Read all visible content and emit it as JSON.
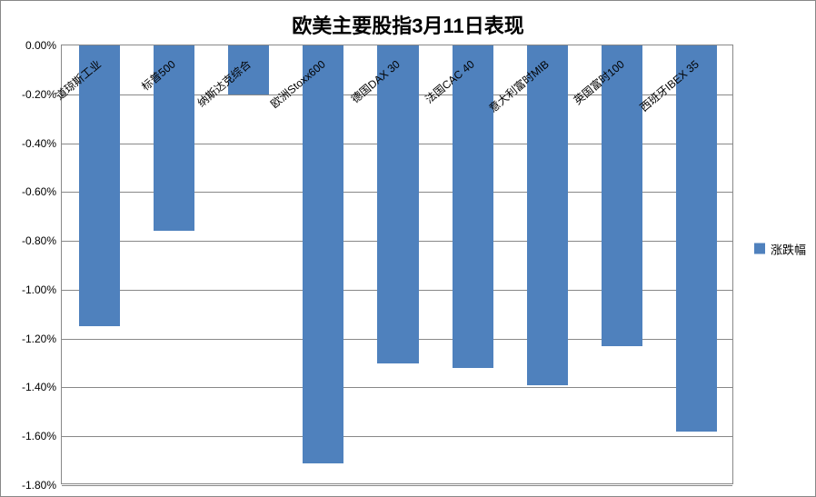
{
  "chart": {
    "type": "bar",
    "title": "欧美主要股指3月11日表现",
    "title_fontsize": 22,
    "title_fontweight": "bold",
    "title_color": "#000000",
    "categories": [
      "道琼斯工业",
      "标普500",
      "纳斯达克综合",
      "欧洲Stoxx600",
      "德国DAX 30",
      "法国CAC 40",
      "意大利富时MIB",
      "英国富时100",
      "西班牙IBEX 35"
    ],
    "values": [
      -1.15,
      -0.76,
      -0.2,
      -1.71,
      -1.3,
      -1.32,
      -1.39,
      -1.23,
      -1.58
    ],
    "bar_color": "#4f81bd",
    "background_color": "#ffffff",
    "plot_border_color": "#888888",
    "grid_color": "#888888",
    "ylim": [
      -1.8,
      0.0
    ],
    "ytick_step": 0.2,
    "yticks": [
      "0.00%",
      "-0.20%",
      "-0.40%",
      "-0.60%",
      "-0.80%",
      "-1.00%",
      "-1.20%",
      "-1.40%",
      "-1.60%",
      "-1.80%"
    ],
    "ytick_values": [
      0.0,
      -0.2,
      -0.4,
      -0.6,
      -0.8,
      -1.0,
      -1.2,
      -1.4,
      -1.6,
      -1.8
    ],
    "label_fontsize": 12,
    "label_color": "#000000",
    "label_rotation": -40,
    "bar_width_ratio": 0.55,
    "legend_label": "涨跌幅",
    "legend_swatch_color": "#4f81bd",
    "legend_fontsize": 13,
    "legend_position": "right-middle"
  }
}
